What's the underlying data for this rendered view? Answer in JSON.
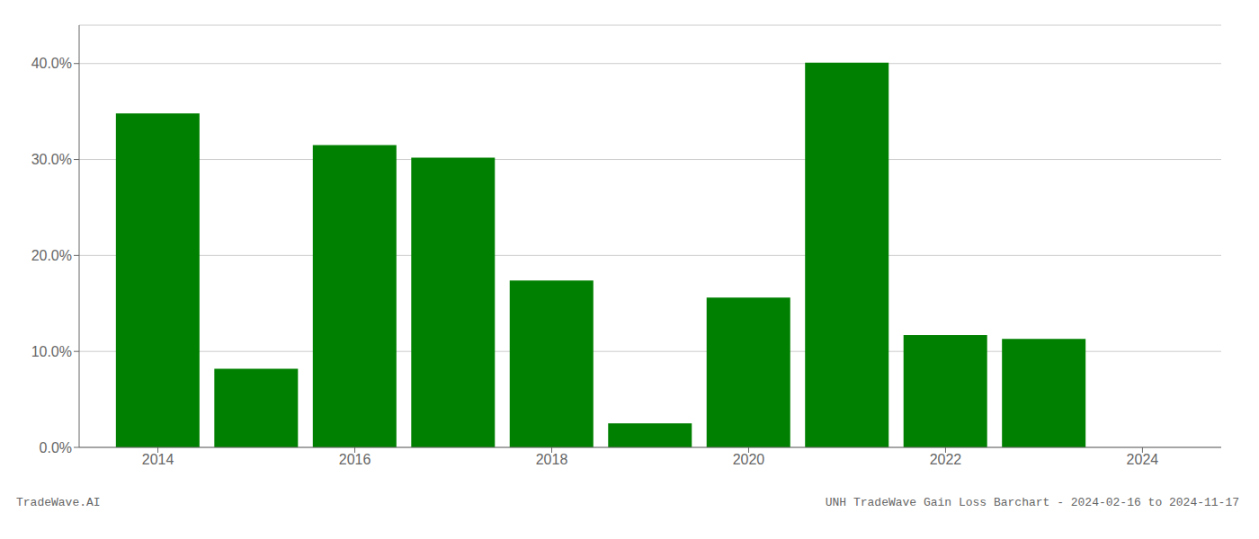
{
  "chart_data": {
    "type": "bar",
    "x": [
      2014,
      2015,
      2016,
      2017,
      2018,
      2019,
      2020,
      2021,
      2022,
      2023
    ],
    "values": [
      0.348,
      0.082,
      0.315,
      0.302,
      0.174,
      0.025,
      0.156,
      0.401,
      0.117,
      0.113
    ],
    "color": "#008000",
    "xlim": [
      2013.2,
      2024.8
    ],
    "xticks": [
      2014,
      2016,
      2018,
      2020,
      2022,
      2024
    ],
    "ylim": [
      0,
      0.44
    ],
    "yticks": [
      {
        "value": 0.0,
        "label": "0.0%"
      },
      {
        "value": 0.1,
        "label": "10.0%"
      },
      {
        "value": 0.2,
        "label": "20.0%"
      },
      {
        "value": 0.3,
        "label": "30.0%"
      },
      {
        "value": 0.4,
        "label": "40.0%"
      }
    ],
    "grid": true,
    "annotations": [
      "TradeWave.AI",
      "UNH TradeWave Gain Loss Barchart - 2024-02-16 to 2024-11-17"
    ]
  }
}
